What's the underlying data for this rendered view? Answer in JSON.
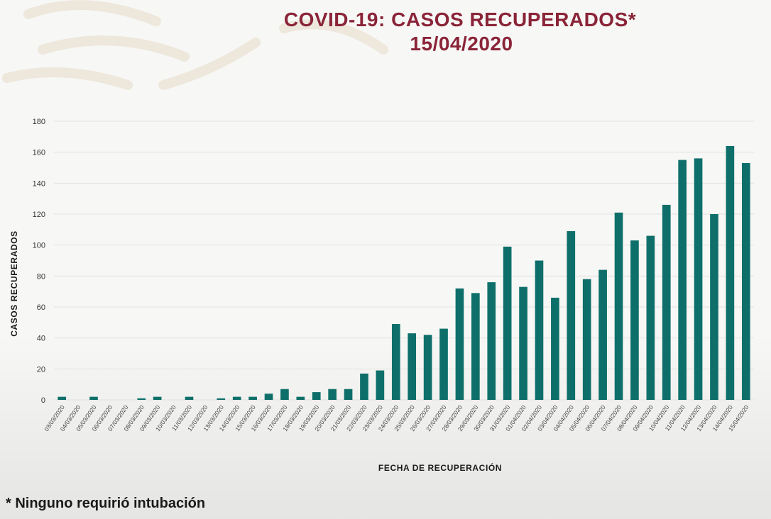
{
  "header": {
    "title": "COVID-19: CASOS RECUPERADOS*",
    "date": "15/04/2020"
  },
  "footnote": "* Ninguno requirió intubación",
  "colors": {
    "bar": "#0e6f6a",
    "title": "#8a2438",
    "grid": "#e2e2e0"
  },
  "chart_data": {
    "type": "bar",
    "title": "COVID-19: CASOS RECUPERADOS*",
    "subtitle": "15/04/2020",
    "xlabel": "FECHA DE RECUPERACIÓN",
    "ylabel": "CASOS RECUPERADOS",
    "ylim": [
      0,
      180
    ],
    "yticks": [
      0,
      20,
      40,
      60,
      80,
      100,
      120,
      140,
      160,
      180
    ],
    "grid": true,
    "legend": "none",
    "categories": [
      "03/03/2020",
      "04/03/2020",
      "05/03/2020",
      "06/03/2020",
      "07/03/2020",
      "08/03/2020",
      "09/03/2020",
      "10/03/2020",
      "11/03/2020",
      "12/03/2020",
      "13/03/2020",
      "14/03/2020",
      "15/03/2020",
      "16/03/2020",
      "17/03/2020",
      "18/03/2020",
      "19/03/2020",
      "20/03/2020",
      "21/03/2020",
      "22/03/2020",
      "23/03/2020",
      "24/03/2020",
      "25/03/2020",
      "26/03/2020",
      "27/03/2020",
      "28/03/2020",
      "29/03/2020",
      "30/03/2020",
      "31/03/2020",
      "01/04/2020",
      "02/04/2020",
      "03/04/2020",
      "04/04/2020",
      "05/04/2020",
      "06/04/2020",
      "07/04/2020",
      "08/04/2020",
      "09/04/2020",
      "10/04/2020",
      "11/04/2020",
      "12/04/2020",
      "13/04/2020",
      "14/04/2020",
      "15/04/2020"
    ],
    "values": [
      2,
      0,
      2,
      0,
      0,
      1,
      2,
      0,
      2,
      0,
      1,
      2,
      2,
      4,
      7,
      2,
      5,
      7,
      7,
      17,
      19,
      49,
      43,
      42,
      46,
      72,
      69,
      76,
      99,
      73,
      90,
      66,
      109,
      78,
      84,
      121,
      103,
      106,
      126,
      155,
      156,
      120,
      164,
      153
    ]
  }
}
